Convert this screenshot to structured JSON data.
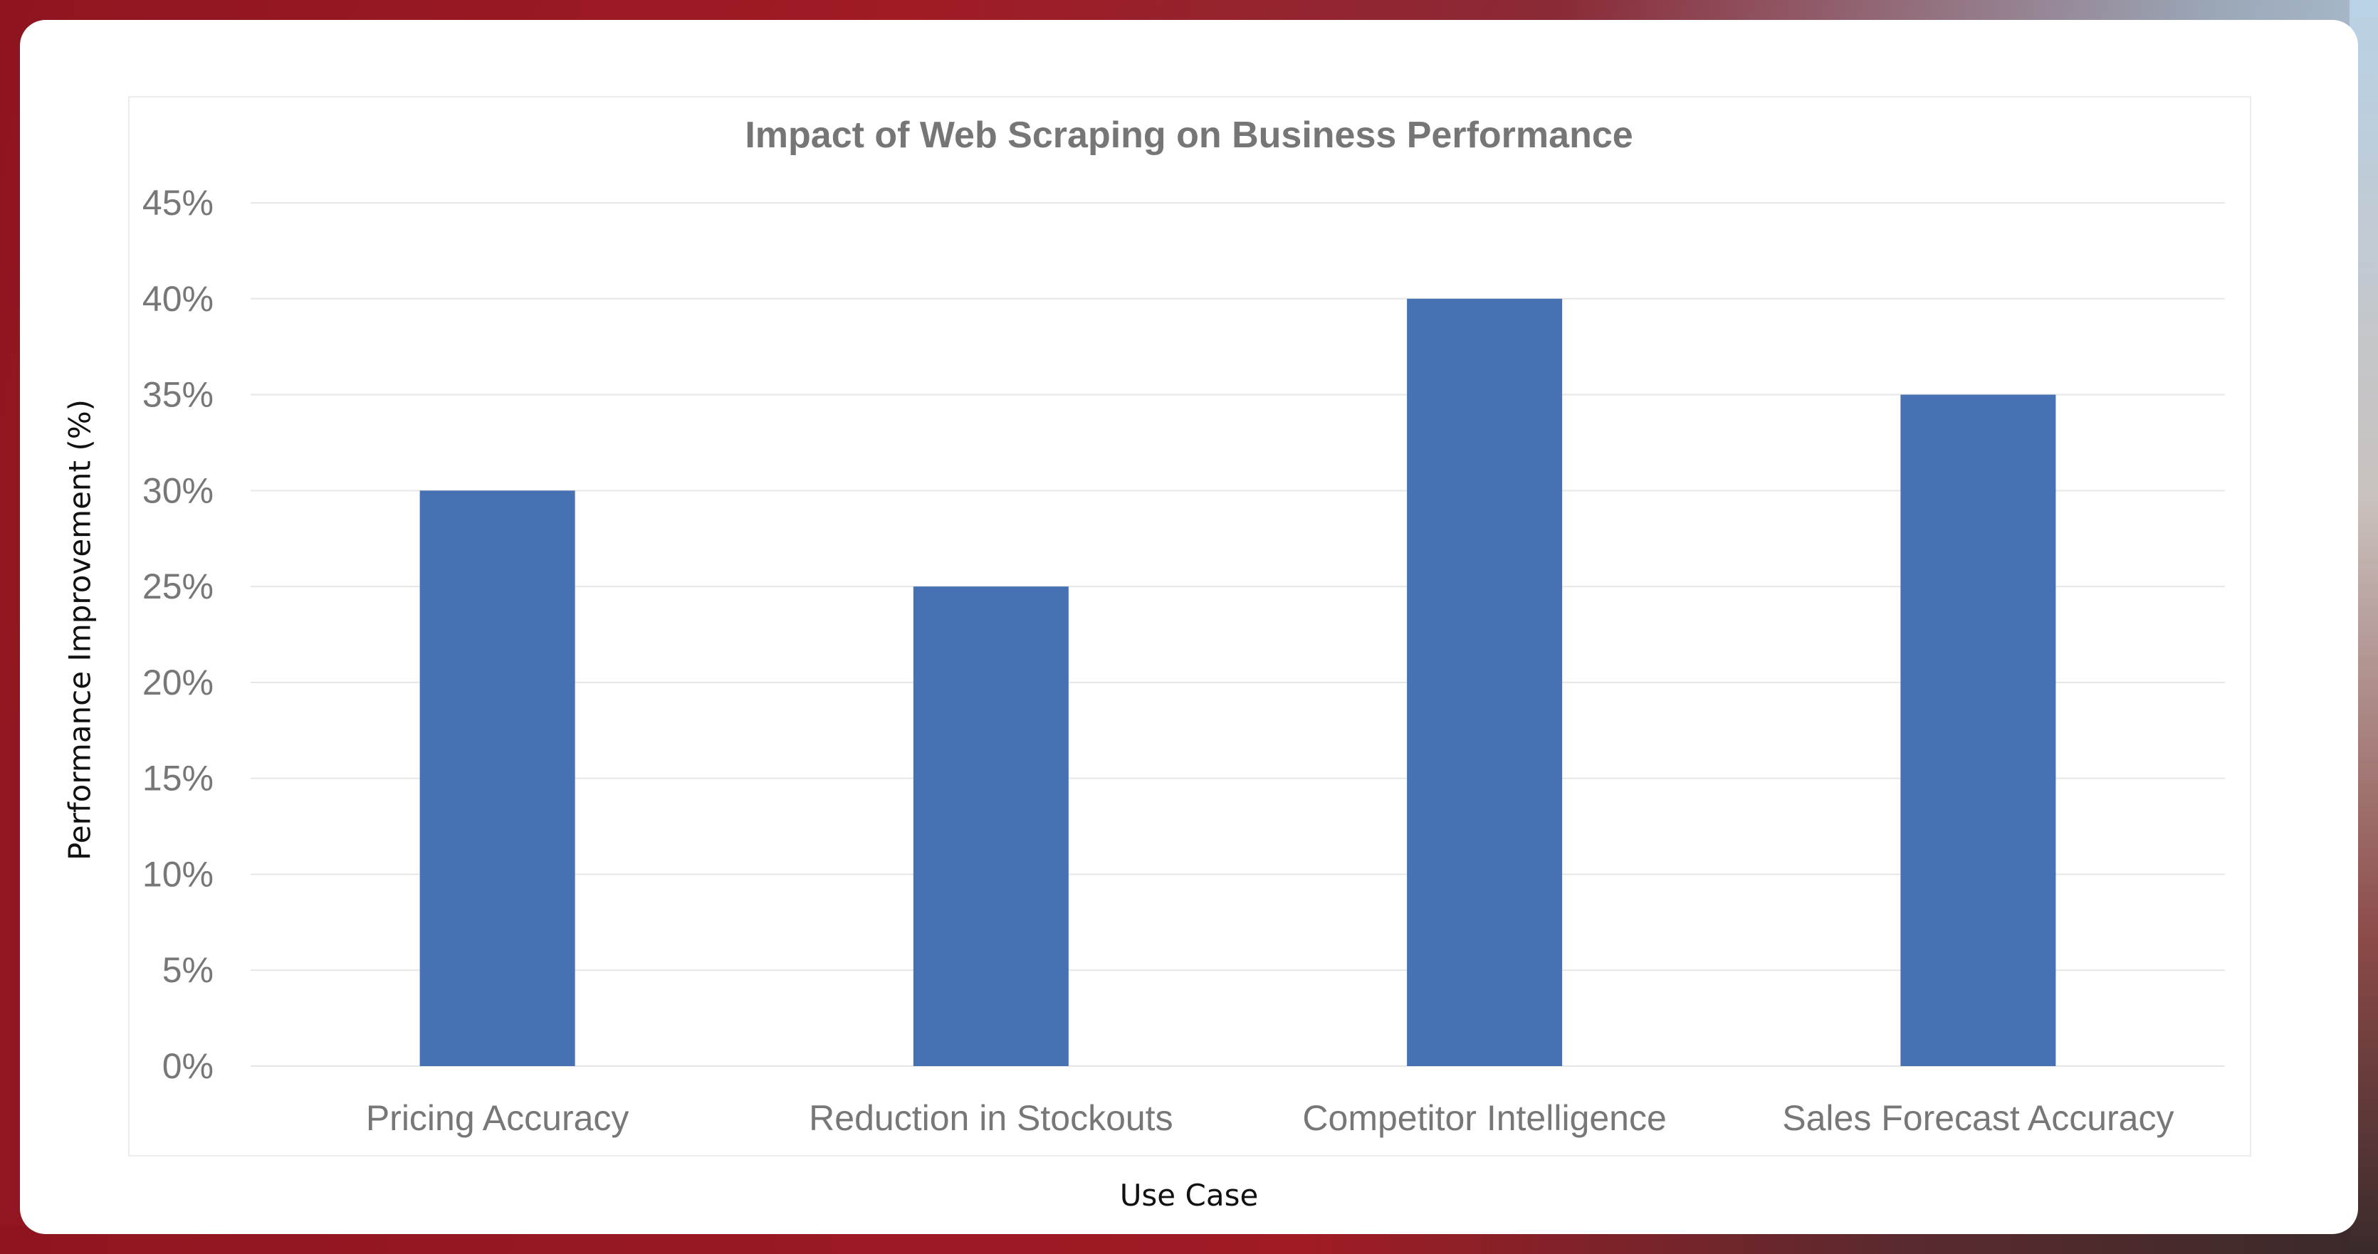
{
  "chart_data": {
    "type": "bar",
    "title": "Impact of Web Scraping on Business Performance",
    "xlabel": "Use Case",
    "ylabel": "Performance Improvement (%)",
    "categories": [
      "Pricing Accuracy",
      "Reduction in Stockouts",
      "Competitor Intelligence",
      "Sales Forecast Accuracy"
    ],
    "values": [
      30,
      25,
      40,
      35
    ],
    "ylim": [
      0,
      45
    ],
    "yticks": [
      0,
      5,
      10,
      15,
      20,
      25,
      30,
      35,
      40,
      45
    ],
    "ytick_suffix": "%",
    "grid": true,
    "legend": "none",
    "bar_color": "#4672b4"
  }
}
